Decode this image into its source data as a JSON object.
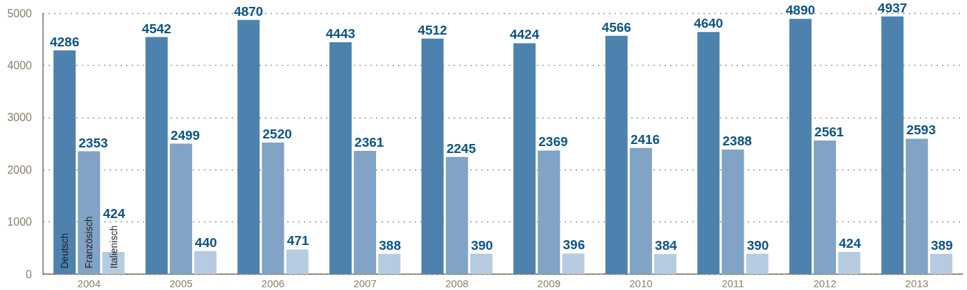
{
  "chart_data": {
    "type": "bar",
    "categories": [
      "2004",
      "2005",
      "2006",
      "2007",
      "2008",
      "2009",
      "2010",
      "2011",
      "2012",
      "2013"
    ],
    "series": [
      {
        "name": "Deutsch",
        "color": "#4d82ae",
        "values": [
          4286,
          4542,
          4870,
          4443,
          4512,
          4424,
          4566,
          4640,
          4890,
          4937
        ]
      },
      {
        "name": "Französisch",
        "color": "#80a3c6",
        "values": [
          2353,
          2499,
          2520,
          2361,
          2245,
          2369,
          2416,
          2388,
          2561,
          2593
        ]
      },
      {
        "name": "Italienisch",
        "color": "#b7cbe0",
        "values": [
          424,
          440,
          471,
          388,
          390,
          396,
          384,
          390,
          424,
          389
        ]
      }
    ],
    "ylim": [
      0,
      5000
    ],
    "yticks": [
      0,
      1000,
      2000,
      3000,
      4000,
      5000
    ],
    "grid": "y",
    "data_labels": true
  }
}
